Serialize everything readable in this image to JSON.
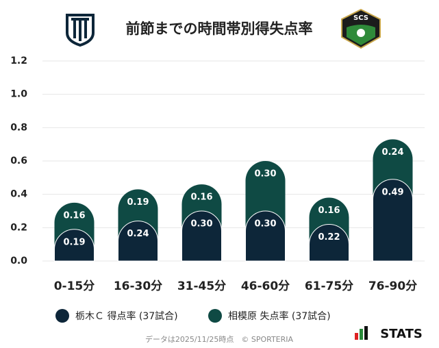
{
  "chart_data": {
    "type": "stacked-bar",
    "title": "前節までの時間帯別得失点率",
    "badge": "SCS",
    "categories": [
      "0-15分",
      "16-30分",
      "31-45分",
      "46-60分",
      "61-75分",
      "76-90分"
    ],
    "series": [
      {
        "name": "栃木Ｃ 得点率 (37試合)",
        "color": "#0d2639",
        "values": [
          0.19,
          0.24,
          0.3,
          0.3,
          0.22,
          0.49
        ],
        "value_labels": [
          "0.19",
          "0.24",
          "0.30",
          "0.30",
          "0.22",
          "0.49"
        ]
      },
      {
        "name": "相模原 失点率 (37試合)",
        "color": "#0f4a44",
        "values": [
          0.16,
          0.19,
          0.16,
          0.3,
          0.16,
          0.24
        ],
        "value_labels": [
          "0.16",
          "0.19",
          "0.16",
          "0.30",
          "0.16",
          "0.24"
        ]
      }
    ],
    "ylim": [
      0,
      1.2
    ],
    "yticks": [
      {
        "value": 0,
        "label": "0.0"
      },
      0.2,
      0.4,
      0.6,
      0.8,
      {
        "value": 1,
        "label": "1.0"
      },
      1.2
    ],
    "grid": true,
    "footnote": "データは2025/11/25時点　© SPORTERIA",
    "brand": "STATS"
  }
}
